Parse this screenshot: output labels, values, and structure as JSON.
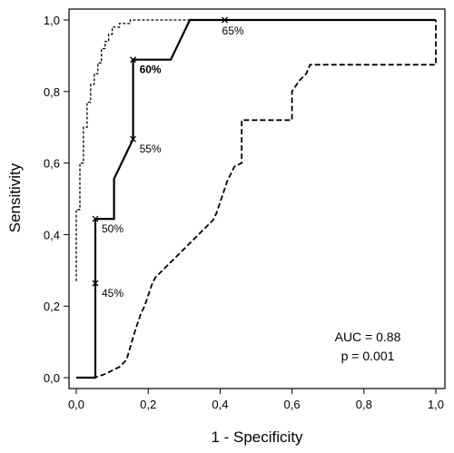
{
  "chart_data": {
    "type": "line",
    "xlabel": "1 - Specificity",
    "ylabel": "Sensitivity",
    "xlim": [
      0,
      1
    ],
    "ylim": [
      0,
      1
    ],
    "xticks": [
      {
        "value": 0.0,
        "label": "0,0"
      },
      {
        "value": 0.2,
        "label": "0,2"
      },
      {
        "value": 0.4,
        "label": "0,4"
      },
      {
        "value": 0.6,
        "label": "0,6"
      },
      {
        "value": 0.8,
        "label": "0,8"
      },
      {
        "value": 1.0,
        "label": "1,0"
      }
    ],
    "yticks": [
      {
        "value": 0.0,
        "label": "0,0"
      },
      {
        "value": 0.2,
        "label": "0,2"
      },
      {
        "value": 0.4,
        "label": "0,4"
      },
      {
        "value": 0.6,
        "label": "0,6"
      },
      {
        "value": 0.8,
        "label": "0,8"
      },
      {
        "value": 1.0,
        "label": "1,0"
      }
    ],
    "series": [
      {
        "style": "solid",
        "x": [
          0.0,
          0.053,
          0.053,
          0.105,
          0.105,
          0.158,
          0.158,
          0.263,
          0.316,
          1.0
        ],
        "y": [
          0.0,
          0.0,
          0.444,
          0.444,
          0.556,
          0.667,
          0.889,
          0.889,
          1.0,
          1.0
        ]
      },
      {
        "style": "short-dash",
        "x": [
          0.0,
          0.0,
          0.01,
          0.01,
          0.02,
          0.02,
          0.03,
          0.03,
          0.04,
          0.04,
          0.05,
          0.05,
          0.06,
          0.06,
          0.07,
          0.07,
          0.08,
          0.08,
          0.09,
          0.09,
          0.1,
          0.1,
          0.12,
          0.12,
          0.15,
          0.15,
          0.2,
          0.2,
          1.0
        ],
        "y": [
          0.27,
          0.47,
          0.47,
          0.6,
          0.6,
          0.7,
          0.7,
          0.77,
          0.77,
          0.82,
          0.82,
          0.85,
          0.85,
          0.88,
          0.88,
          0.92,
          0.92,
          0.94,
          0.94,
          0.96,
          0.96,
          0.98,
          0.98,
          0.99,
          0.99,
          1.0,
          1.0,
          1.0,
          1.0
        ]
      },
      {
        "style": "long-dash",
        "x": [
          0.0,
          0.05,
          0.08,
          0.1,
          0.12,
          0.14,
          0.16,
          0.17,
          0.18,
          0.19,
          0.2,
          0.21,
          0.22,
          0.24,
          0.26,
          0.28,
          0.3,
          0.32,
          0.34,
          0.36,
          0.38,
          0.39,
          0.4,
          0.41,
          0.42,
          0.43,
          0.44,
          0.46,
          0.46,
          0.6,
          0.6,
          0.62,
          0.64,
          0.65,
          1.0,
          1.0
        ],
        "y": [
          0.0,
          0.0,
          0.01,
          0.02,
          0.03,
          0.05,
          0.12,
          0.15,
          0.18,
          0.2,
          0.23,
          0.26,
          0.28,
          0.3,
          0.32,
          0.34,
          0.36,
          0.38,
          0.4,
          0.42,
          0.44,
          0.46,
          0.49,
          0.52,
          0.55,
          0.57,
          0.59,
          0.6,
          0.72,
          0.72,
          0.8,
          0.83,
          0.85,
          0.875,
          0.875,
          1.0
        ]
      }
    ],
    "point_markers": [
      {
        "x": 0.053,
        "y": 0.264,
        "label": "45%",
        "bold": false
      },
      {
        "x": 0.053,
        "y": 0.444,
        "label": "50%",
        "bold": false
      },
      {
        "x": 0.158,
        "y": 0.667,
        "label": "55%",
        "bold": false
      },
      {
        "x": 0.158,
        "y": 0.889,
        "label": "60%",
        "bold": true
      },
      {
        "x": 0.413,
        "y": 1.0,
        "label": "65%",
        "bold": false
      }
    ],
    "annotations": {
      "auc": "AUC = 0.88",
      "p": "p = 0.001"
    },
    "grid": false
  }
}
